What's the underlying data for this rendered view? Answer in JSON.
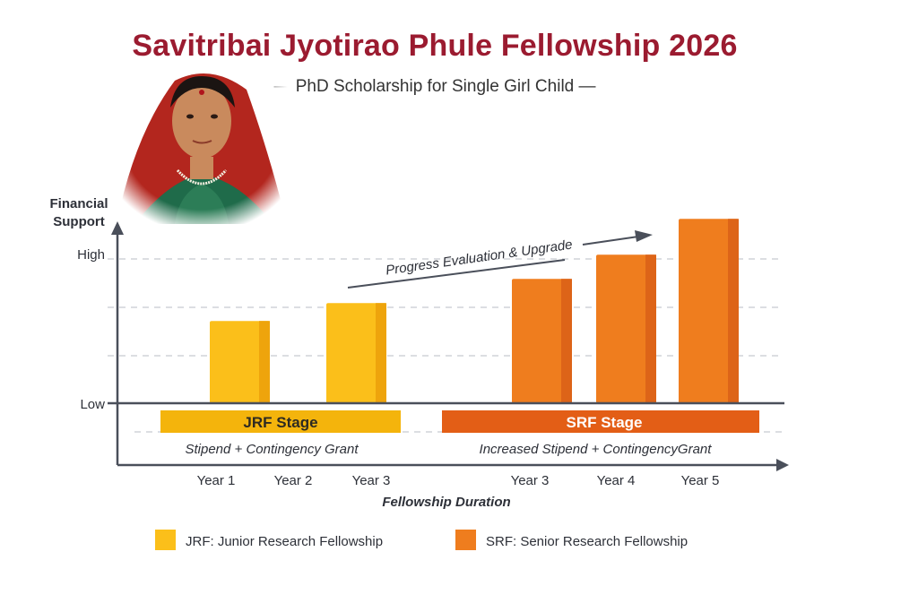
{
  "title": "Savitribai Jyotirao Phule Fellowship 2026",
  "subtitle": "— PhD Scholarship for Single Girl Child —",
  "chart_data": {
    "type": "bar",
    "ylabel": "Financial Support",
    "xlabel": "Fellowship Duration",
    "y_tick_labels": [
      "Low",
      "High"
    ],
    "grid": true,
    "categories": [
      "Year 1",
      "Year 2",
      "Year 3",
      "Year 3",
      "Year 4",
      "Year 5"
    ],
    "series": [
      {
        "name": "JRF: Junior Research Fellowship",
        "color": "#fbbf1a",
        "bars": [
          {
            "category_index": 0,
            "value": 1.7
          },
          {
            "category_index": 2,
            "value": 2.07
          }
        ]
      },
      {
        "name": "SRF: Senior Research Fellowship",
        "color": "#ef7d1e",
        "bars": [
          {
            "category_index": 3,
            "value": 2.57
          },
          {
            "category_index": 4,
            "value": 3.07
          },
          {
            "category_index": 5,
            "value": 3.81
          }
        ]
      }
    ],
    "stages": [
      {
        "label": "JRF Stage",
        "note": "Stipend + Contingency Grant",
        "color": "#f4b40c"
      },
      {
        "label": "SRF Stage",
        "note": "Increased Stipend + ContingencyGrant",
        "color": "#e35e16"
      }
    ],
    "annotation": "Progress Evaluation & Upgrade",
    "legend_position": "bottom"
  },
  "colors": {
    "title": "#9b1b30",
    "axis": "#4a4f5a"
  }
}
